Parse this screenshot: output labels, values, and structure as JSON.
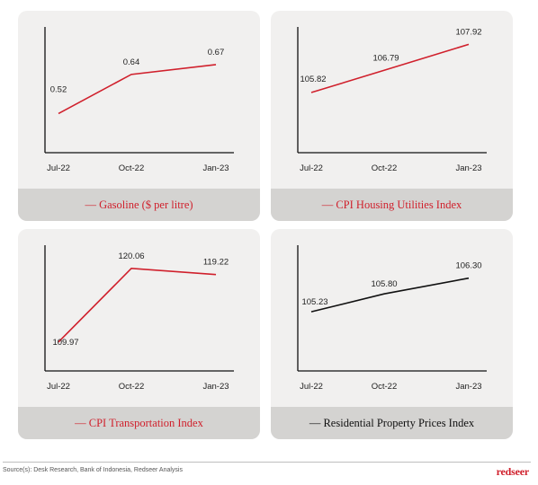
{
  "colors": {
    "red": "#d0202c",
    "black": "#111111",
    "panel_bg": "#f1f0ef",
    "legend_bg": "#d4d3d1"
  },
  "chart_data": [
    {
      "type": "line",
      "categories": [
        "Jul-22",
        "Oct-22",
        "Jan-23"
      ],
      "series": [
        {
          "name": "— Gasoline ($ per litre)",
          "values": [
            0.52,
            0.64,
            0.67
          ],
          "color": "#d0202c"
        }
      ],
      "data_labels": [
        "0.52",
        "0.64",
        "0.67"
      ],
      "grid": false
    },
    {
      "type": "line",
      "categories": [
        "Jul-22",
        "Oct-22",
        "Jan-23"
      ],
      "series": [
        {
          "name": "— CPI Housing Utilities Index",
          "values": [
            105.82,
            106.79,
            107.92
          ],
          "color": "#d0202c"
        }
      ],
      "data_labels": [
        "105.82",
        "106.79",
        "107.92"
      ],
      "grid": false
    },
    {
      "type": "line",
      "categories": [
        "Jul-22",
        "Oct-22",
        "Jan-23"
      ],
      "series": [
        {
          "name": "— CPI Transportation Index",
          "values": [
            109.97,
            120.06,
            119.22
          ],
          "color": "#d0202c"
        }
      ],
      "data_labels": [
        "109.97",
        "120.06",
        "119.22"
      ],
      "grid": false
    },
    {
      "type": "line",
      "categories": [
        "Jul-22",
        "Oct-22",
        "Jan-23"
      ],
      "series": [
        {
          "name": "— Residential Property Prices Index",
          "values": [
            105.23,
            105.8,
            106.3
          ],
          "color": "#111111"
        }
      ],
      "data_labels": [
        "105.23",
        "105.80",
        "106.30"
      ],
      "grid": false
    }
  ],
  "footer": {
    "source": "Source(s): Desk Research, Bank of Indonesia, Redseer Analysis",
    "logo": "redseer"
  }
}
